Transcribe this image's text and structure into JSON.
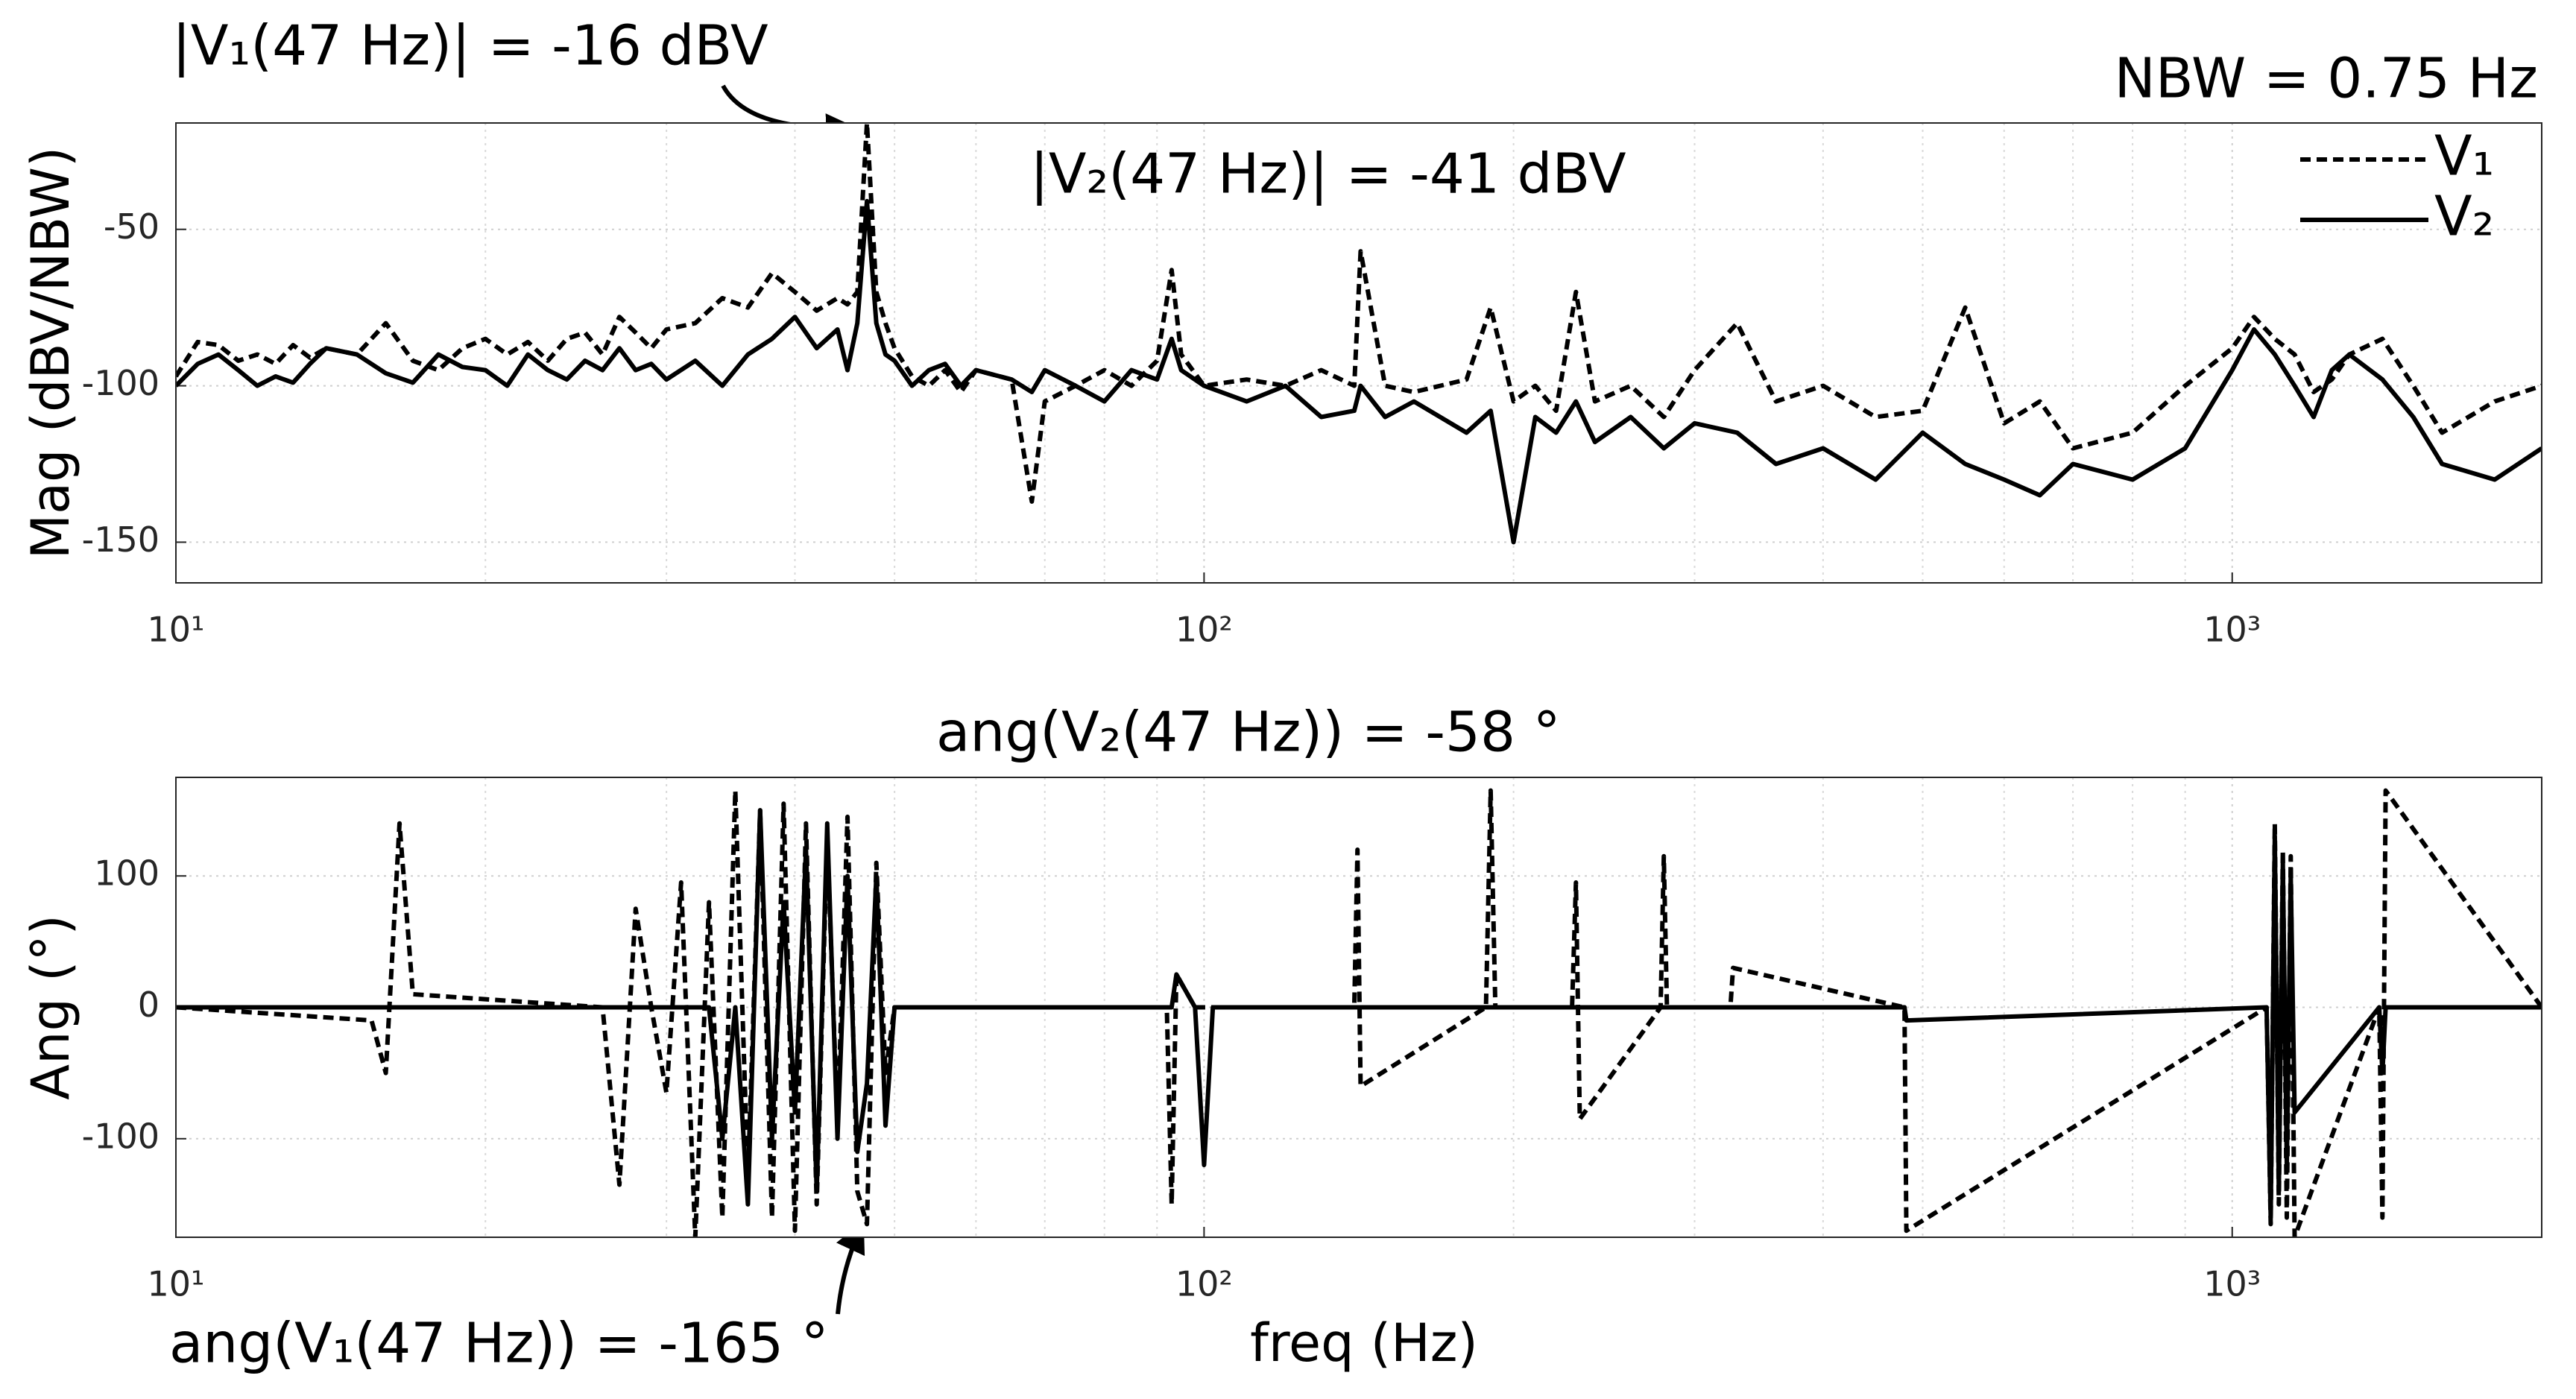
{
  "chart_data": [
    {
      "type": "line",
      "xscale": "log",
      "grid": true,
      "legend": "upper right",
      "ylabel": "Mag (dBV/NBW)",
      "xlim": [
        10,
        2000
      ],
      "ylim": [
        -163,
        -16
      ],
      "xticks": [
        {
          "value": 10,
          "label": "10¹"
        },
        {
          "value": 100,
          "label": "10²"
        },
        {
          "value": 1000,
          "label": "10³"
        }
      ],
      "xminorticks": [
        20,
        30,
        40,
        50,
        60,
        70,
        80,
        90,
        200,
        300,
        400,
        500,
        600,
        700,
        800,
        900
      ],
      "yticks": [
        -150,
        -100,
        -50
      ],
      "annotations": [
        "|V₁(47 Hz)| = -16 dBV",
        "|V₂(47 Hz)| = -41 dBV",
        "NBW = 0.75 Hz"
      ],
      "x": [
        10,
        10.5,
        11,
        11.5,
        12,
        12.5,
        13,
        13.5,
        14,
        15,
        16,
        17,
        18,
        19,
        20,
        21,
        22,
        23,
        24,
        25,
        26,
        27,
        28,
        29,
        30,
        32,
        34,
        36,
        38,
        40,
        42,
        44,
        45,
        46,
        47,
        48,
        49,
        50,
        52,
        54,
        56,
        58,
        60,
        65,
        68,
        70,
        75,
        80,
        85,
        90,
        93,
        95,
        100,
        110,
        120,
        130,
        140,
        142,
        150,
        160,
        180,
        190,
        200,
        210,
        220,
        230,
        240,
        260,
        280,
        300,
        330,
        360,
        400,
        450,
        500,
        550,
        600,
        650,
        700,
        800,
        900,
        1000,
        1050,
        1100,
        1150,
        1200,
        1250,
        1300,
        1400,
        1500,
        1600,
        1800,
        2000
      ],
      "series": [
        {
          "name": "V₁",
          "color": "#000000",
          "dash": true,
          "values": [
            -97,
            -86,
            -87,
            -92,
            -90,
            -93,
            -87,
            -91,
            -88,
            -90,
            -80,
            -92,
            -95,
            -88,
            -85,
            -90,
            -86,
            -92,
            -85,
            -83,
            -90,
            -78,
            -83,
            -88,
            -82,
            -80,
            -72,
            -75,
            -64,
            -70,
            -76,
            -72,
            -74,
            -70,
            -16,
            -70,
            -80,
            -88,
            -97,
            -100,
            -95,
            -102,
            -95,
            -98,
            -137,
            -105,
            -100,
            -95,
            -100,
            -92,
            -63,
            -90,
            -100,
            -98,
            -100,
            -95,
            -100,
            -57,
            -100,
            -102,
            -98,
            -75,
            -105,
            -100,
            -108,
            -70,
            -105,
            -100,
            -110,
            -95,
            -80,
            -105,
            -100,
            -110,
            -108,
            -75,
            -112,
            -105,
            -120,
            -115,
            -100,
            -88,
            -78,
            -85,
            -90,
            -102,
            -98,
            -90,
            -85,
            -100,
            -115,
            -105,
            -100
          ]
        },
        {
          "name": "V₂",
          "color": "#000000",
          "dash": false,
          "values": [
            -100,
            -93,
            -90,
            -95,
            -100,
            -97,
            -99,
            -93,
            -88,
            -90,
            -96,
            -99,
            -90,
            -94,
            -95,
            -100,
            -90,
            -95,
            -98,
            -92,
            -95,
            -88,
            -95,
            -93,
            -98,
            -92,
            -100,
            -90,
            -85,
            -78,
            -88,
            -82,
            -95,
            -80,
            -41,
            -80,
            -90,
            -92,
            -100,
            -95,
            -93,
            -100,
            -95,
            -98,
            -102,
            -95,
            -100,
            -105,
            -95,
            -98,
            -85,
            -95,
            -100,
            -105,
            -100,
            -110,
            -108,
            -100,
            -110,
            -105,
            -115,
            -108,
            -150,
            -110,
            -115,
            -105,
            -118,
            -110,
            -120,
            -112,
            -115,
            -125,
            -120,
            -130,
            -115,
            -125,
            -130,
            -135,
            -125,
            -130,
            -120,
            -95,
            -82,
            -90,
            -100,
            -110,
            -95,
            -90,
            -98,
            -110,
            -125,
            -130,
            -120
          ]
        }
      ]
    },
    {
      "type": "line",
      "xscale": "log",
      "grid": true,
      "legend": false,
      "ylabel": "Ang (°)",
      "xlabel": "freq (Hz)",
      "xlim": [
        10,
        2000
      ],
      "ylim": [
        -175,
        175
      ],
      "xticks": [
        {
          "value": 10,
          "label": "10¹"
        },
        {
          "value": 100,
          "label": "10²"
        },
        {
          "value": 1000,
          "label": "10³"
        }
      ],
      "xminorticks": [
        20,
        30,
        40,
        50,
        60,
        70,
        80,
        90,
        200,
        300,
        400,
        500,
        600,
        700,
        800,
        900
      ],
      "yticks": [
        -100,
        0,
        100
      ],
      "annotations": [
        "ang(V₂(47 Hz)) = -58 °",
        "ang(V₁(47 Hz)) = -165 °"
      ],
      "x": [
        10,
        15.5,
        16,
        16.5,
        17,
        26,
        27,
        28,
        29,
        30,
        31,
        32,
        33,
        34,
        35,
        36,
        37,
        38,
        39,
        40,
        41,
        42,
        43,
        44,
        45,
        46,
        47,
        48,
        49,
        50,
        60,
        92,
        93,
        94,
        98,
        100,
        102,
        140,
        141,
        142,
        188,
        190,
        192,
        228,
        230,
        232,
        278,
        280,
        282,
        325,
        327,
        480,
        482,
        1080,
        1090,
        1100,
        1110,
        1120,
        1130,
        1140,
        1150,
        1390,
        1400,
        1410,
        2000
      ],
      "series": [
        {
          "name": "V₁",
          "color": "#000000",
          "dash": true,
          "values": [
            0,
            -10,
            -50,
            140,
            10,
            0,
            -135,
            75,
            0,
            -65,
            95,
            -175,
            80,
            -160,
            165,
            -130,
            150,
            -160,
            155,
            -170,
            140,
            -150,
            130,
            -90,
            145,
            -140,
            -165,
            110,
            -50,
            0,
            0,
            0,
            -150,
            25,
            0,
            0,
            0,
            0,
            120,
            -60,
            0,
            165,
            0,
            0,
            95,
            -85,
            0,
            115,
            0,
            0,
            30,
            0,
            -170,
            0,
            -165,
            140,
            -150,
            120,
            -160,
            115,
            -175,
            0,
            -160,
            165,
            0
          ]
        },
        {
          "name": "V₂",
          "color": "#000000",
          "dash": false,
          "values": [
            0,
            0,
            0,
            0,
            0,
            0,
            0,
            0,
            0,
            0,
            0,
            0,
            0,
            -100,
            0,
            -150,
            150,
            -100,
            80,
            -80,
            120,
            -140,
            140,
            -100,
            100,
            -110,
            -58,
            100,
            -90,
            0,
            0,
            0,
            0,
            25,
            0,
            -120,
            0,
            0,
            0,
            0,
            0,
            0,
            0,
            0,
            0,
            0,
            0,
            0,
            0,
            0,
            0,
            0,
            -10,
            0,
            -160,
            130,
            -140,
            110,
            -120,
            100,
            -80,
            0,
            -50,
            0,
            0
          ]
        }
      ]
    }
  ]
}
